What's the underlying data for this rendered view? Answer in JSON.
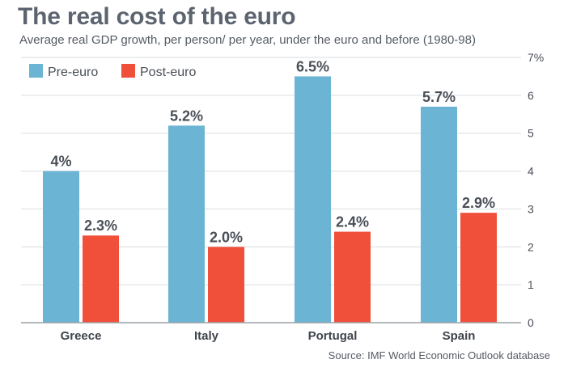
{
  "header": {
    "title": "The real cost of the euro",
    "subtitle": "Average real GDP growth, per person/ per year, under the euro and before (1980-98)"
  },
  "footer": {
    "source": "Source: IMF World Economic Outlook database"
  },
  "colors": {
    "pre_euro": "#6bb4d4",
    "post_euro": "#f0503a",
    "gridline": "#d9dde2",
    "text": "#4a4f57"
  },
  "chart_data": {
    "type": "bar",
    "categories": [
      "Greece",
      "Italy",
      "Portugal",
      "Spain"
    ],
    "series": [
      {
        "name": "Pre-euro",
        "values": [
          4.0,
          5.2,
          6.5,
          5.7
        ],
        "labels": [
          "4%",
          "5.2%",
          "6.5%",
          "5.7%"
        ]
      },
      {
        "name": "Post-euro",
        "values": [
          2.3,
          2.0,
          2.4,
          2.9
        ],
        "labels": [
          "2.3%",
          "2.0%",
          "2.4%",
          "2.9%"
        ]
      }
    ],
    "ylim": [
      0,
      7
    ],
    "yticks": [
      "0",
      "1",
      "2",
      "3",
      "4",
      "5",
      "6",
      "7%"
    ],
    "grid": true,
    "legend_position": "top-left",
    "axis_side": "right"
  }
}
